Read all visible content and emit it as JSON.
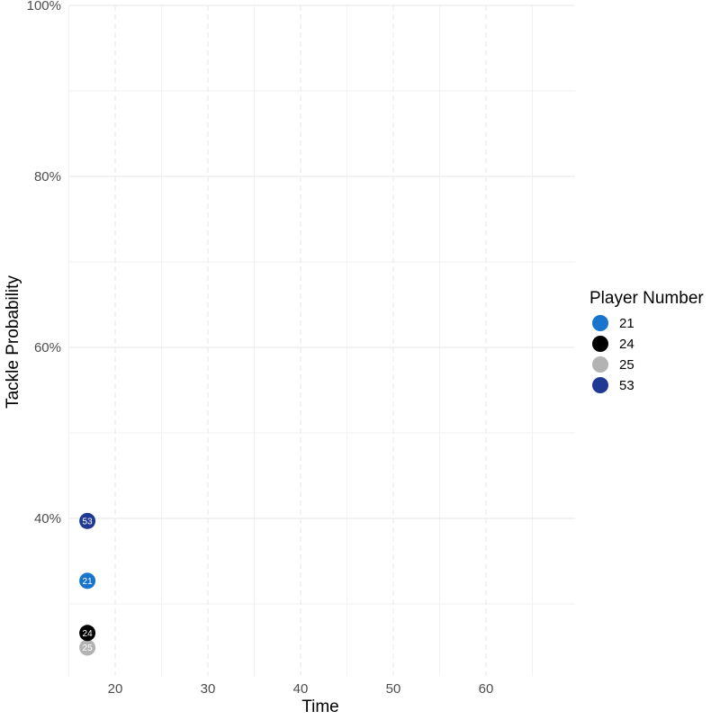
{
  "chart_data": {
    "type": "scatter",
    "xlabel": "Time",
    "ylabel": "Tackle Probability",
    "xlim": [
      15,
      69
    ],
    "ylim": [
      0.22,
      1.0
    ],
    "x_ticks": [
      20,
      30,
      40,
      50,
      60
    ],
    "x_minor_ticks": [
      15,
      25,
      35,
      45,
      55,
      65
    ],
    "y_ticks": [
      0.4,
      0.6,
      0.8,
      1.0
    ],
    "y_tick_labels": [
      "40%",
      "60%",
      "80%",
      "100%"
    ],
    "y_minor_ticks": [
      0.3,
      0.5,
      0.7,
      0.9
    ],
    "grid": true,
    "legend": {
      "title": "Player Number",
      "position": "right",
      "entries": [
        "21",
        "24",
        "25",
        "53"
      ]
    },
    "series": [
      {
        "name": "21",
        "color": "#1874CD",
        "points": [
          {
            "x": 17,
            "y": 0.327
          }
        ]
      },
      {
        "name": "24",
        "color": "#000000",
        "points": [
          {
            "x": 17,
            "y": 0.266
          }
        ]
      },
      {
        "name": "25",
        "color": "#B3B3B3",
        "points": [
          {
            "x": 17,
            "y": 0.249
          }
        ]
      },
      {
        "name": "53",
        "color": "#203A94",
        "points": [
          {
            "x": 17,
            "y": 0.397
          }
        ]
      }
    ]
  }
}
